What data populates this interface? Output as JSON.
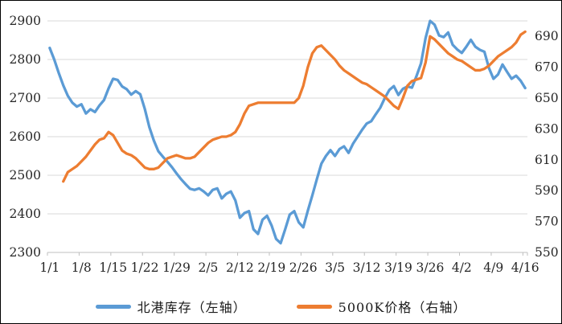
{
  "chart_data": {
    "type": "line",
    "title": "",
    "xlabel": "",
    "ylabel_left": "",
    "ylabel_right": "",
    "grid": true,
    "legend_position": "bottom",
    "colors": {
      "grid": "#d9d9d9",
      "axis": "#bfbfbf",
      "text": "#262626",
      "background": "#ffffff",
      "frame_border": "#000000"
    },
    "x": [
      "1/1",
      "1/2",
      "1/3",
      "1/4",
      "1/5",
      "1/6",
      "1/7",
      "1/8",
      "1/9",
      "1/10",
      "1/11",
      "1/12",
      "1/13",
      "1/14",
      "1/15",
      "1/16",
      "1/17",
      "1/18",
      "1/19",
      "1/20",
      "1/21",
      "1/22",
      "1/23",
      "1/24",
      "1/25",
      "1/26",
      "1/27",
      "1/28",
      "1/29",
      "1/30",
      "1/31",
      "2/1",
      "2/2",
      "2/3",
      "2/4",
      "2/5",
      "2/6",
      "2/7",
      "2/8",
      "2/9",
      "2/10",
      "2/11",
      "2/12",
      "2/13",
      "2/14",
      "2/15",
      "2/16",
      "2/17",
      "2/18",
      "2/19",
      "2/20",
      "2/21",
      "2/22",
      "2/23",
      "2/24",
      "2/25",
      "2/26",
      "2/27",
      "2/28",
      "3/1",
      "3/2",
      "3/3",
      "3/4",
      "3/5",
      "3/6",
      "3/7",
      "3/8",
      "3/9",
      "3/10",
      "3/11",
      "3/12",
      "3/13",
      "3/14",
      "3/15",
      "3/16",
      "3/17",
      "3/18",
      "3/19",
      "3/20",
      "3/21",
      "3/22",
      "3/23",
      "3/24",
      "3/25",
      "3/26",
      "3/27",
      "3/28",
      "3/29",
      "3/30",
      "3/31",
      "4/1",
      "4/2",
      "4/3",
      "4/4",
      "4/5",
      "4/6",
      "4/7",
      "4/8",
      "4/9",
      "4/10",
      "4/11",
      "4/12",
      "4/13",
      "4/14",
      "4/15",
      "4/16"
    ],
    "x_tick_labels": [
      "1/1",
      "1/8",
      "1/15",
      "1/22",
      "1/29",
      "2/5",
      "2/12",
      "2/19",
      "2/26",
      "3/5",
      "3/12",
      "3/19",
      "3/26",
      "4/2",
      "4/9",
      "4/16"
    ],
    "x_tick_every": 7,
    "left_axis": {
      "scale_min": 2300,
      "scale_max": 2900,
      "ticks": [
        2900,
        2800,
        2700,
        2600,
        2500,
        2400,
        2300
      ]
    },
    "right_axis": {
      "scale_min": 550,
      "scale_max": 700,
      "ticks": [
        690,
        670,
        650,
        630,
        610,
        590,
        570,
        550
      ]
    },
    "series": [
      {
        "name": "北港库存（左轴）",
        "axis": "left",
        "color": "#5b9bd5",
        "values": [
          2830,
          2800,
          2765,
          2733,
          2706,
          2688,
          2678,
          2684,
          2660,
          2671,
          2664,
          2681,
          2695,
          2725,
          2750,
          2747,
          2730,
          2723,
          2709,
          2718,
          2710,
          2672,
          2625,
          2590,
          2562,
          2548,
          2535,
          2521,
          2505,
          2490,
          2477,
          2465,
          2462,
          2466,
          2458,
          2448,
          2462,
          2466,
          2440,
          2452,
          2458,
          2435,
          2390,
          2402,
          2407,
          2360,
          2348,
          2385,
          2395,
          2370,
          2335,
          2324,
          2360,
          2398,
          2407,
          2378,
          2365,
          2408,
          2448,
          2490,
          2530,
          2550,
          2565,
          2550,
          2568,
          2575,
          2558,
          2582,
          2600,
          2618,
          2634,
          2640,
          2658,
          2675,
          2700,
          2721,
          2731,
          2708,
          2724,
          2730,
          2727,
          2757,
          2790,
          2855,
          2900,
          2890,
          2862,
          2858,
          2870,
          2838,
          2826,
          2817,
          2833,
          2851,
          2833,
          2825,
          2820,
          2778,
          2750,
          2761,
          2787,
          2768,
          2750,
          2758,
          2745,
          2726
        ]
      },
      {
        "name": "5000K价格（右轴）",
        "axis": "right",
        "color": "#ed7d31",
        "values": [
          null,
          null,
          null,
          596,
          602,
          604,
          606,
          609,
          612,
          616,
          620,
          623,
          624,
          628,
          626,
          621,
          616,
          614,
          613,
          611,
          608,
          605,
          604,
          604,
          605,
          608,
          611,
          612,
          613,
          612,
          611,
          611,
          612,
          615,
          618,
          621,
          623,
          624,
          625,
          625,
          626,
          628,
          633,
          640,
          645,
          646,
          647,
          647,
          647,
          647,
          647,
          647,
          647,
          647,
          647,
          650,
          658,
          670,
          679,
          683,
          684,
          681,
          678,
          675,
          671,
          668,
          666,
          664,
          662,
          660,
          659,
          657,
          655,
          653,
          651,
          648,
          645,
          643,
          650,
          658,
          661,
          662,
          663,
          673,
          690,
          688,
          685,
          682,
          679,
          677,
          675,
          674,
          672,
          670,
          668,
          668,
          669,
          671,
          674,
          677,
          679,
          681,
          683,
          686,
          691,
          693
        ]
      }
    ]
  }
}
